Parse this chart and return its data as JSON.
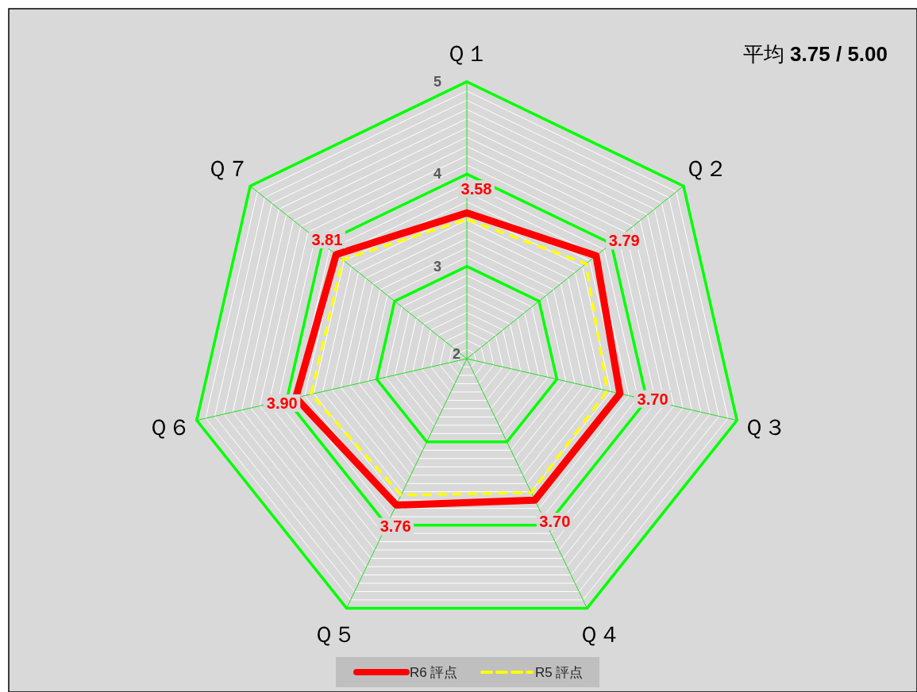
{
  "chart_data": {
    "type": "radar",
    "title": "平均 **3.75 / 5.00**",
    "categories": [
      "Ｑ１",
      "Ｑ２",
      "Ｑ３",
      "Ｑ４",
      "Ｑ５",
      "Ｑ６",
      "Ｑ７"
    ],
    "series": [
      {
        "name": "R6 評点",
        "color": "#ff0000",
        "values": [
          3.58,
          3.79,
          3.7,
          3.7,
          3.76,
          3.9,
          3.81
        ],
        "value_labels": [
          "3.58",
          "3.79",
          "3.70",
          "3.70",
          "3.76",
          "3.90",
          "3.81"
        ],
        "line_style": "solid"
      },
      {
        "name": "R5 評点",
        "color": "#ffff00",
        "values": [
          3.51,
          3.65,
          3.56,
          3.61,
          3.64,
          3.73,
          3.72
        ],
        "line_style": "dashed"
      }
    ],
    "ylim": [
      2,
      5
    ],
    "yticks": [
      2,
      3,
      4,
      5
    ],
    "grid": true,
    "legend": "bottom",
    "marker": "none"
  }
}
